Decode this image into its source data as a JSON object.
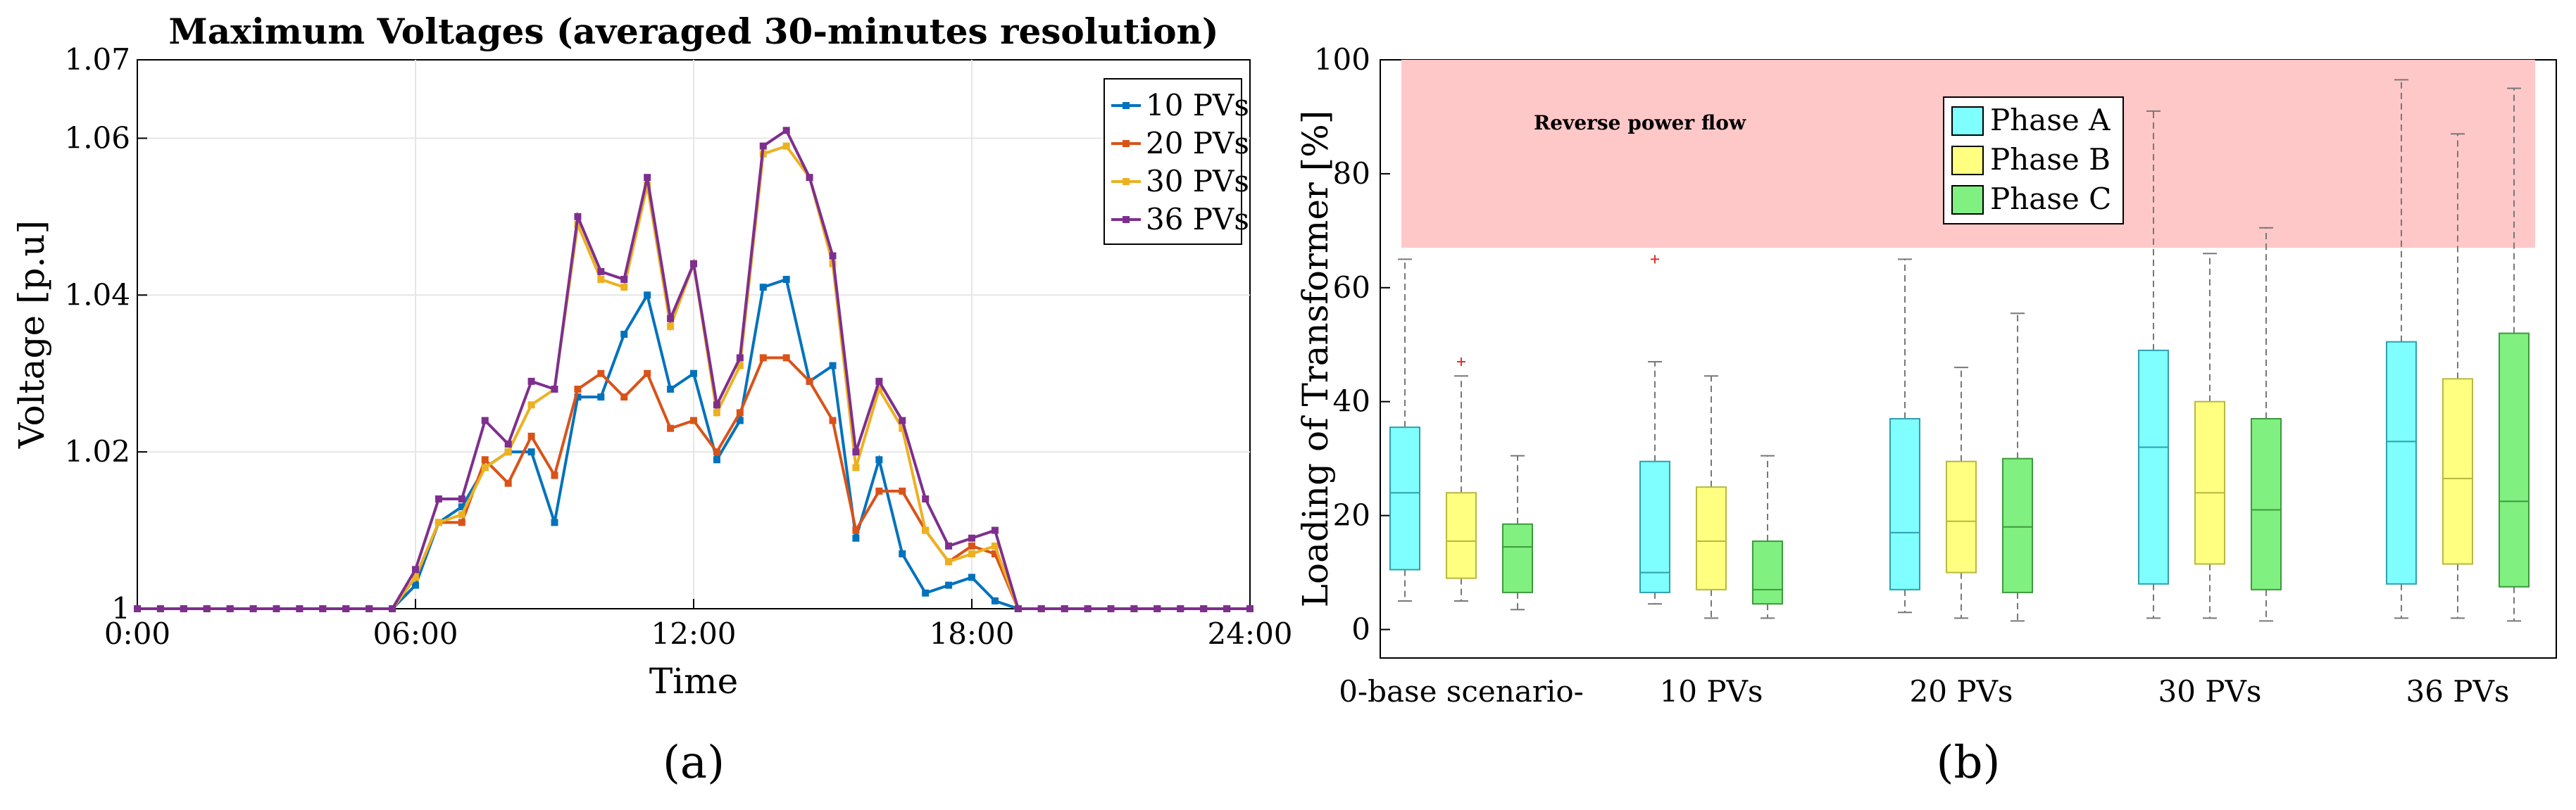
{
  "colors": {
    "series": [
      "#0072BD",
      "#D95319",
      "#EDB120",
      "#7E2F8E"
    ],
    "phases": [
      "#7FFFFF",
      "#FFFF80",
      "#80F080"
    ],
    "phase_edges": [
      "#2F9FB0",
      "#B8B840",
      "#3C9A3C"
    ],
    "reverse_band": "#FFC8C8"
  },
  "chart_data": [
    {
      "type": "line",
      "title": "Maximum Voltages (averaged 30-minutes resolution)",
      "xlabel": "Time",
      "ylabel": "Voltage [p.u]",
      "xlim": [
        0,
        24
      ],
      "ylim": [
        1,
        1.07
      ],
      "xticks": [
        0,
        6,
        12,
        18,
        24
      ],
      "xtick_labels": [
        "0:00",
        "06:00",
        "12:00",
        "18:00",
        "24:00"
      ],
      "yticks": [
        1,
        1.02,
        1.04,
        1.06,
        1.07
      ],
      "ytick_labels": [
        "1",
        "1.02",
        "1.04",
        "1.06",
        "1.07"
      ],
      "grid": true,
      "legend_position": "top-right",
      "x": [
        0,
        0.5,
        1,
        1.5,
        2,
        2.5,
        3,
        3.5,
        4,
        4.5,
        5,
        5.5,
        6,
        6.5,
        7,
        7.5,
        8,
        8.5,
        9,
        9.5,
        10,
        10.5,
        11,
        11.5,
        12,
        12.5,
        13,
        13.5,
        14,
        14.5,
        15,
        15.5,
        16,
        16.5,
        17,
        17.5,
        18,
        18.5,
        19,
        19.5,
        20,
        20.5,
        21,
        21.5,
        22,
        22.5,
        23,
        23.5,
        24
      ],
      "series": [
        {
          "name": "10 PVs",
          "values": [
            1,
            1,
            1,
            1,
            1,
            1,
            1,
            1,
            1,
            1,
            1,
            1,
            1.003,
            1.011,
            1.013,
            1.018,
            1.02,
            1.02,
            1.011,
            1.027,
            1.027,
            1.035,
            1.04,
            1.028,
            1.03,
            1.019,
            1.024,
            1.041,
            1.042,
            1.029,
            1.031,
            1.009,
            1.019,
            1.007,
            1.002,
            1.003,
            1.004,
            1.001,
            1,
            1,
            1,
            1,
            1,
            1,
            1,
            1,
            1,
            1,
            1
          ]
        },
        {
          "name": "20 PVs",
          "values": [
            1,
            1,
            1,
            1,
            1,
            1,
            1,
            1,
            1,
            1,
            1,
            1,
            1.004,
            1.011,
            1.011,
            1.019,
            1.016,
            1.022,
            1.017,
            1.028,
            1.03,
            1.027,
            1.03,
            1.023,
            1.024,
            1.02,
            1.025,
            1.032,
            1.032,
            1.029,
            1.024,
            1.01,
            1.015,
            1.015,
            1.01,
            1.006,
            1.008,
            1.007,
            1,
            1,
            1,
            1,
            1,
            1,
            1,
            1,
            1,
            1,
            1
          ]
        },
        {
          "name": "30 PVs",
          "values": [
            1,
            1,
            1,
            1,
            1,
            1,
            1,
            1,
            1,
            1,
            1,
            1,
            1.004,
            1.011,
            1.012,
            1.018,
            1.02,
            1.026,
            1.028,
            1.049,
            1.042,
            1.041,
            1.054,
            1.036,
            1.044,
            1.025,
            1.031,
            1.058,
            1.059,
            1.055,
            1.044,
            1.018,
            1.028,
            1.023,
            1.01,
            1.006,
            1.007,
            1.008,
            1,
            1,
            1,
            1,
            1,
            1,
            1,
            1,
            1,
            1,
            1
          ]
        },
        {
          "name": "36 PVs",
          "values": [
            1,
            1,
            1,
            1,
            1,
            1,
            1,
            1,
            1,
            1,
            1,
            1,
            1.005,
            1.014,
            1.014,
            1.024,
            1.021,
            1.029,
            1.028,
            1.05,
            1.043,
            1.042,
            1.055,
            1.037,
            1.044,
            1.026,
            1.032,
            1.059,
            1.061,
            1.055,
            1.045,
            1.02,
            1.029,
            1.024,
            1.014,
            1.008,
            1.009,
            1.01,
            1,
            1,
            1,
            1,
            1,
            1,
            1,
            1,
            1,
            1,
            1
          ]
        }
      ],
      "caption": "(a)"
    },
    {
      "type": "box",
      "ylabel": "Loading of Transformer [%]",
      "ylim": [
        -5,
        100
      ],
      "yticks": [
        0,
        20,
        40,
        60,
        80,
        100
      ],
      "grid": false,
      "categories": [
        "0-base scenario-",
        "10 PVs",
        "20 PVs",
        "30 PVs",
        "36 PVs"
      ],
      "legend_position": "top-center",
      "band": {
        "label": "Reverse power flow",
        "ymin": 67,
        "ymax": 100
      },
      "series": [
        {
          "name": "Phase A",
          "boxes": [
            {
              "whisker_low": 5,
              "q1": 10.5,
              "median": 24,
              "q3": 35.5,
              "whisker_high": 65,
              "outliers": []
            },
            {
              "whisker_low": 4.5,
              "q1": 6.5,
              "median": 10,
              "q3": 29.5,
              "whisker_high": 47,
              "outliers": [
                65
              ]
            },
            {
              "whisker_low": 3,
              "q1": 7,
              "median": 17,
              "q3": 37,
              "whisker_high": 65,
              "outliers": []
            },
            {
              "whisker_low": 2,
              "q1": 8,
              "median": 32,
              "q3": 49,
              "whisker_high": 91,
              "outliers": []
            },
            {
              "whisker_low": 2,
              "q1": 8,
              "median": 33,
              "q3": 50.5,
              "whisker_high": 96.5,
              "outliers": []
            }
          ]
        },
        {
          "name": "Phase B",
          "boxes": [
            {
              "whisker_low": 5,
              "q1": 9,
              "median": 15.5,
              "q3": 24,
              "whisker_high": 44.5,
              "outliers": [
                47
              ]
            },
            {
              "whisker_low": 2,
              "q1": 7,
              "median": 15.5,
              "q3": 25,
              "whisker_high": 44.5,
              "outliers": []
            },
            {
              "whisker_low": 2,
              "q1": 10,
              "median": 19,
              "q3": 29.5,
              "whisker_high": 46,
              "outliers": []
            },
            {
              "whisker_low": 2,
              "q1": 11.5,
              "median": 24,
              "q3": 40,
              "whisker_high": 66,
              "outliers": []
            },
            {
              "whisker_low": 2,
              "q1": 11.5,
              "median": 26.5,
              "q3": 44,
              "whisker_high": 87,
              "outliers": []
            }
          ]
        },
        {
          "name": "Phase C",
          "boxes": [
            {
              "whisker_low": 3.5,
              "q1": 6.5,
              "median": 14.5,
              "q3": 18.5,
              "whisker_high": 30.5,
              "outliers": []
            },
            {
              "whisker_low": 2,
              "q1": 4.5,
              "median": 7,
              "q3": 15.5,
              "whisker_high": 30.5,
              "outliers": []
            },
            {
              "whisker_low": 1.5,
              "q1": 6.5,
              "median": 18,
              "q3": 30,
              "whisker_high": 55.5,
              "outliers": []
            },
            {
              "whisker_low": 1.5,
              "q1": 7,
              "median": 21,
              "q3": 37,
              "whisker_high": 70.5,
              "outliers": []
            },
            {
              "whisker_low": 1.5,
              "q1": 7.5,
              "median": 22.5,
              "q3": 52,
              "whisker_high": 95,
              "outliers": []
            }
          ]
        }
      ],
      "caption": "(b)"
    }
  ]
}
